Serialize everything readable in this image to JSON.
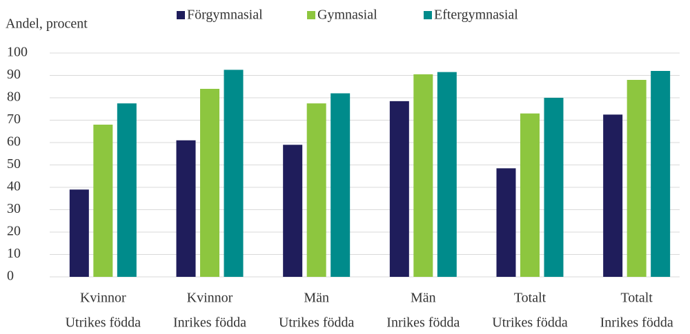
{
  "chart_data": {
    "type": "bar",
    "y_label": "Andel, procent",
    "categories": [
      [
        "Kvinnor",
        "Utrikes födda"
      ],
      [
        "Kvinnor",
        "Inrikes födda"
      ],
      [
        "Män",
        "Utrikes födda"
      ],
      [
        "Män",
        "Inrikes födda"
      ],
      [
        "Totalt",
        "Utrikes födda"
      ],
      [
        "Totalt",
        "Inrikes födda"
      ]
    ],
    "series": [
      {
        "name": "Förgymnasial",
        "color": "#1f1d5b",
        "values": [
          39,
          61,
          59,
          78.5,
          48.5,
          72.5
        ]
      },
      {
        "name": "Gymnasial",
        "color": "#8dc63f",
        "values": [
          68,
          84,
          77.5,
          90.5,
          73,
          88
        ]
      },
      {
        "name": "Eftergymnasial",
        "color": "#008b8b",
        "values": [
          77.5,
          92.5,
          82,
          91.5,
          80,
          92
        ]
      }
    ],
    "ylim": [
      0,
      100
    ],
    "yticks": [
      0,
      10,
      20,
      30,
      40,
      50,
      60,
      70,
      80,
      90,
      100
    ],
    "grid": true,
    "legend": "top"
  }
}
